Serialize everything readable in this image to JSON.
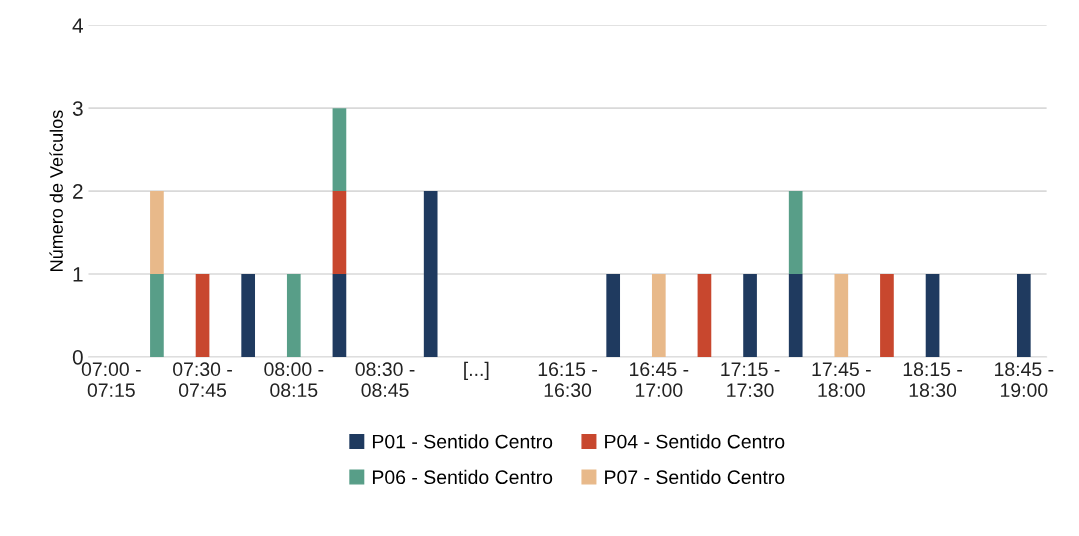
{
  "chart_data": {
    "type": "bar",
    "stacked": true,
    "ylabel": "Número de Veículos",
    "categories": [
      "07:00 - 07:15",
      null,
      "07:30 - 07:45",
      null,
      "08:00 - 08:15",
      null,
      "08:30 - 08:45",
      null,
      "[...]",
      null,
      "16:15 - 16:30",
      null,
      "16:45 - 17:00",
      null,
      "17:15 - 17:30",
      null,
      "17:45 - 18:00",
      null,
      "18:15 - 18:30",
      null,
      "18:45 - 19:00"
    ],
    "series": [
      {
        "name": "P01 - Sentido Centro",
        "color": "#1f3a5f",
        "values": [
          null,
          null,
          null,
          1,
          null,
          1,
          null,
          2,
          null,
          null,
          null,
          1,
          null,
          null,
          1,
          1,
          null,
          null,
          1,
          null,
          1
        ]
      },
      {
        "name": "P04 - Sentido Centro",
        "color": "#c8472e",
        "values": [
          null,
          null,
          1,
          null,
          null,
          1,
          null,
          null,
          null,
          null,
          null,
          null,
          null,
          1,
          null,
          null,
          null,
          1,
          null,
          null,
          null
        ]
      },
      {
        "name": "P06 - Sentido Centro",
        "color": "#589e88",
        "values": [
          null,
          1,
          null,
          null,
          1,
          1,
          null,
          null,
          null,
          null,
          null,
          null,
          null,
          null,
          null,
          1,
          null,
          null,
          null,
          null,
          null
        ]
      },
      {
        "name": "P07 - Sentido Centro",
        "color": "#e8b98a",
        "values": [
          null,
          1,
          null,
          null,
          null,
          null,
          null,
          null,
          null,
          null,
          null,
          null,
          1,
          null,
          null,
          null,
          1,
          null,
          null,
          null,
          null
        ]
      }
    ],
    "ylim": [
      0,
      4
    ],
    "yticks": [
      0,
      1,
      2,
      3,
      4
    ],
    "grid": "y",
    "legend": "bottom"
  }
}
